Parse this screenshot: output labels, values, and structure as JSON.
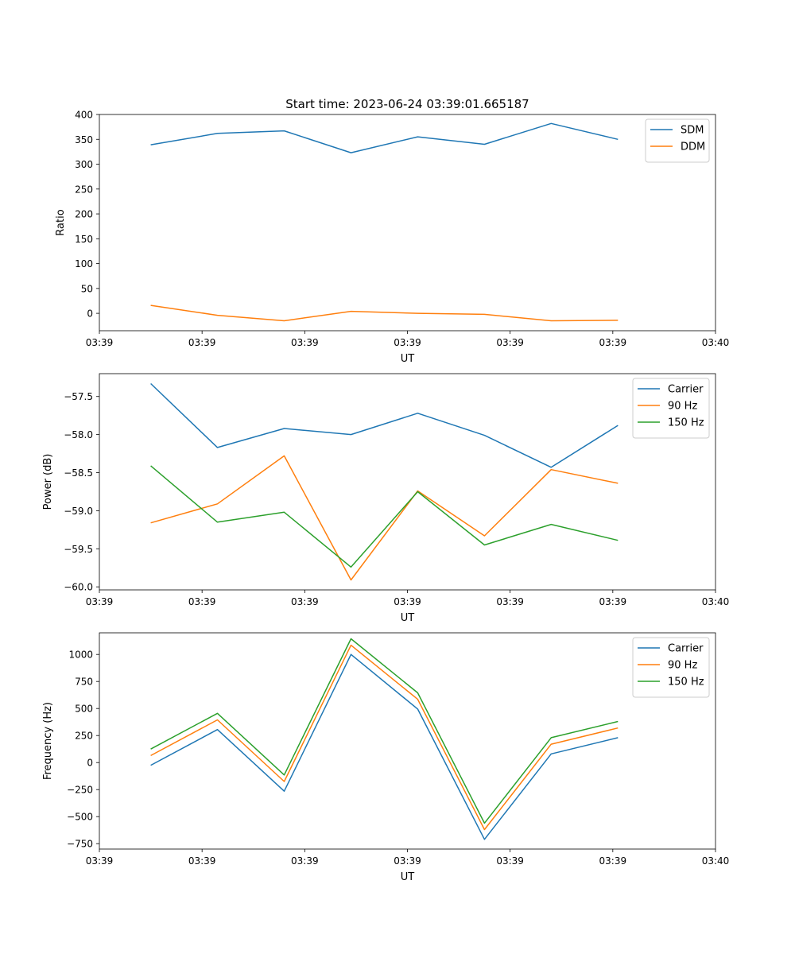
{
  "title": "Start time: 2023-06-24 03:39:01.665187",
  "chart_data": [
    {
      "type": "line",
      "title": "Start time: 2023-06-24 03:39:01.665187",
      "xlabel": "UT",
      "ylabel": "Ratio",
      "x": [
        0.5,
        1.15,
        1.8,
        2.45,
        3.1,
        3.75,
        4.4,
        5.05
      ],
      "xlim": [
        0,
        6
      ],
      "xticks": [
        0,
        1,
        2,
        3,
        4,
        5,
        6
      ],
      "xtick_labels": [
        "03:39",
        "03:39",
        "03:39",
        "03:39",
        "03:39",
        "03:39",
        "03:40"
      ],
      "ylim": [
        -35,
        400
      ],
      "yticks": [
        0,
        50,
        100,
        150,
        200,
        250,
        300,
        350,
        400
      ],
      "legend": "top-right",
      "grid": false,
      "series": [
        {
          "name": "SDM",
          "color": "#1f77b4",
          "values": [
            339,
            362,
            367,
            323,
            355,
            340,
            382,
            350
          ]
        },
        {
          "name": "DDM",
          "color": "#ff7f0e",
          "values": [
            16,
            -4,
            -15,
            4,
            0,
            -2,
            -15,
            -14
          ]
        }
      ]
    },
    {
      "type": "line",
      "xlabel": "UT",
      "ylabel": "Power (dB)",
      "x": [
        0.5,
        1.15,
        1.8,
        2.45,
        3.1,
        3.75,
        4.4,
        5.05
      ],
      "xlim": [
        0,
        6
      ],
      "xticks": [
        0,
        1,
        2,
        3,
        4,
        5,
        6
      ],
      "xtick_labels": [
        "03:39",
        "03:39",
        "03:39",
        "03:39",
        "03:39",
        "03:39",
        "03:40"
      ],
      "ylim": [
        -60.04,
        -57.2
      ],
      "yticks": [
        -60.0,
        -59.5,
        -59.0,
        -58.5,
        -58.0,
        -57.5
      ],
      "ytick_labels": [
        "−60.0",
        "−59.5",
        "−59.0",
        "−58.5",
        "−58.0",
        "−57.5"
      ],
      "legend": "top-right",
      "grid": false,
      "series": [
        {
          "name": "Carrier",
          "color": "#1f77b4",
          "values": [
            -57.33,
            -58.17,
            -57.92,
            -58.0,
            -57.72,
            -58.01,
            -58.43,
            -57.88
          ]
        },
        {
          "name": "90 Hz",
          "color": "#ff7f0e",
          "values": [
            -59.16,
            -58.91,
            -58.28,
            -59.91,
            -58.74,
            -59.33,
            -58.46,
            -58.64
          ]
        },
        {
          "name": "150 Hz",
          "color": "#2ca02c",
          "values": [
            -58.41,
            -59.15,
            -59.02,
            -59.74,
            -58.75,
            -59.45,
            -59.18,
            -59.39
          ]
        }
      ]
    },
    {
      "type": "line",
      "xlabel": "UT",
      "ylabel": "Frequency (Hz)",
      "x": [
        0.5,
        1.15,
        1.8,
        2.45,
        3.1,
        3.75,
        4.4,
        5.05
      ],
      "xlim": [
        0,
        6
      ],
      "xticks": [
        0,
        1,
        2,
        3,
        4,
        5,
        6
      ],
      "xtick_labels": [
        "03:39",
        "03:39",
        "03:39",
        "03:39",
        "03:39",
        "03:39",
        "03:40"
      ],
      "ylim": [
        -800,
        1200
      ],
      "yticks": [
        -750,
        -500,
        -250,
        0,
        250,
        500,
        750,
        1000
      ],
      "ytick_labels": [
        "−750",
        "−500",
        "−250",
        "0",
        "250",
        "500",
        "750",
        "1000"
      ],
      "legend": "top-right",
      "grid": false,
      "series": [
        {
          "name": "Carrier",
          "color": "#1f77b4",
          "values": [
            -25,
            305,
            -265,
            1000,
            495,
            -710,
            80,
            230
          ]
        },
        {
          "name": "90 Hz",
          "color": "#ff7f0e",
          "values": [
            65,
            395,
            -175,
            1085,
            585,
            -620,
            170,
            320
          ]
        },
        {
          "name": "150 Hz",
          "color": "#2ca02c",
          "values": [
            125,
            455,
            -115,
            1145,
            645,
            -560,
            230,
            380
          ]
        }
      ]
    }
  ]
}
